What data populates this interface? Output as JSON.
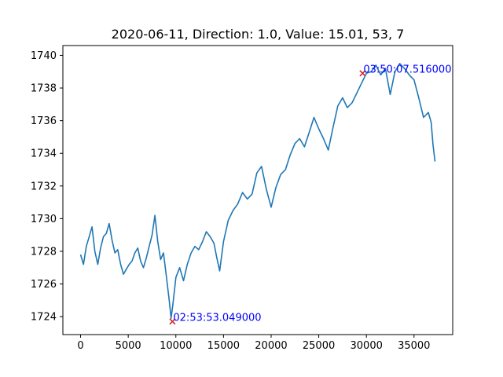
{
  "chart_data": {
    "type": "line",
    "title": "2020-06-11, Direction: 1.0, Value: 15.01, 53, 7",
    "xlabel": "",
    "ylabel": "",
    "xlim": [
      -1860,
      39060
    ],
    "ylim": [
      1722.9,
      1740.6
    ],
    "x_ticks": [
      0,
      5000,
      10000,
      15000,
      20000,
      25000,
      30000,
      35000
    ],
    "x_tick_labels": [
      "0",
      "5000",
      "10000",
      "15000",
      "20000",
      "25000",
      "30000",
      "35000"
    ],
    "y_ticks": [
      1724,
      1726,
      1728,
      1730,
      1732,
      1734,
      1736,
      1738,
      1740
    ],
    "y_tick_labels": [
      "1724",
      "1726",
      "1728",
      "1730",
      "1732",
      "1734",
      "1736",
      "1738",
      "1740"
    ],
    "grid": false,
    "line_color": "#1f77b4",
    "marker_color": "#d62728",
    "annotation_color": "#0000ff",
    "series": [
      {
        "x": [
          0,
          300,
          600,
          900,
          1200,
          1500,
          1800,
          2100,
          2400,
          2700,
          3000,
          3300,
          3600,
          3900,
          4200,
          4500,
          4800,
          5100,
          5400,
          5700,
          6000,
          6300,
          6600,
          6900,
          7200,
          7500,
          7800,
          8100,
          8400,
          8700,
          9000,
          9300,
          9500,
          9700,
          10000,
          10400,
          10800,
          11200,
          11600,
          12000,
          12400,
          12800,
          13200,
          13600,
          14000,
          14300,
          14600,
          15000,
          15500,
          16000,
          16500,
          17000,
          17500,
          18000,
          18500,
          19000,
          19500,
          20000,
          20500,
          21000,
          21500,
          22000,
          22500,
          23000,
          23500,
          24000,
          24500,
          25000,
          25500,
          26000,
          26500,
          27000,
          27500,
          28000,
          28500,
          29000,
          29500,
          30000,
          30500,
          31000,
          31500,
          32000,
          32500,
          33000,
          33500,
          34000,
          34500,
          35000,
          35500,
          36000,
          36500,
          36800,
          37000,
          37200
        ],
        "y": [
          1727.8,
          1727.2,
          1728.3,
          1728.9,
          1729.5,
          1728.0,
          1727.2,
          1728.2,
          1728.9,
          1729.1,
          1729.7,
          1728.7,
          1727.9,
          1728.1,
          1727.2,
          1726.6,
          1726.9,
          1727.2,
          1727.4,
          1727.9,
          1728.2,
          1727.4,
          1727.0,
          1727.6,
          1728.3,
          1729.0,
          1730.2,
          1728.6,
          1727.5,
          1727.9,
          1726.5,
          1725.0,
          1723.9,
          1724.8,
          1726.4,
          1727.0,
          1726.2,
          1727.2,
          1727.9,
          1728.3,
          1728.1,
          1728.6,
          1729.2,
          1728.9,
          1728.5,
          1727.6,
          1726.8,
          1728.6,
          1729.9,
          1730.5,
          1730.9,
          1731.6,
          1731.2,
          1731.5,
          1732.8,
          1733.2,
          1731.8,
          1730.7,
          1731.9,
          1732.7,
          1733.0,
          1733.9,
          1734.6,
          1734.9,
          1734.4,
          1735.3,
          1736.2,
          1735.5,
          1734.9,
          1734.2,
          1735.6,
          1736.9,
          1737.4,
          1736.8,
          1737.1,
          1737.7,
          1738.3,
          1738.9,
          1739.0,
          1739.4,
          1738.8,
          1739.2,
          1737.6,
          1739.0,
          1739.5,
          1739.2,
          1738.8,
          1738.5,
          1737.4,
          1736.2,
          1736.5,
          1735.9,
          1734.5,
          1733.5
        ]
      }
    ],
    "annotations": [
      {
        "x": 9640,
        "y": 1723.7,
        "label": "02:53:53.049000"
      },
      {
        "x": 29600,
        "y": 1738.9,
        "label": "03:50:07.516000"
      }
    ]
  }
}
